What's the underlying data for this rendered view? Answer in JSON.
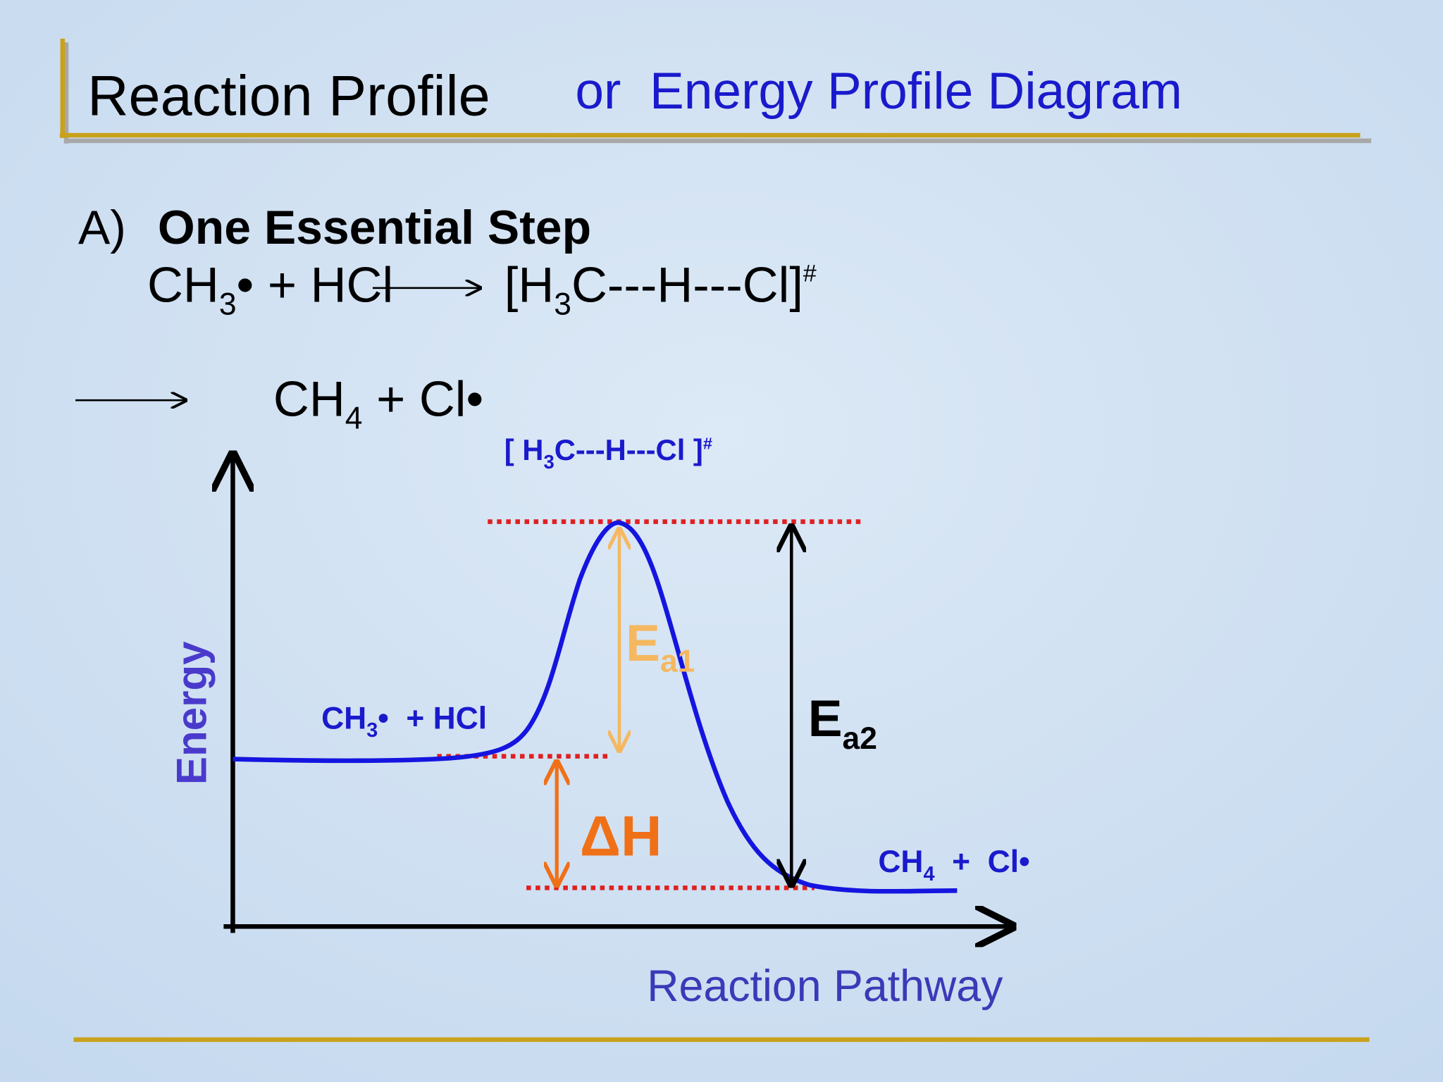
{
  "header": {
    "title": "Reaction Profile",
    "subtitle": "or  Energy Profile Diagram"
  },
  "section": {
    "label": "A)",
    "heading": "One Essential Step"
  },
  "equation": {
    "line_1_left": [
      {
        "t": "CH"
      },
      {
        "sub": "3"
      },
      {
        "t": "• + HCl"
      }
    ],
    "line_1_right": [
      {
        "t": "[H"
      },
      {
        "sub": "3"
      },
      {
        "t": "C---H---Cl]"
      },
      {
        "sup": "#"
      }
    ],
    "line_2": [
      {
        "t": "CH"
      },
      {
        "sub": "4"
      },
      {
        "t": " + Cl•"
      }
    ]
  },
  "diagram": {
    "transition_state": [
      {
        "t": "[ H"
      },
      {
        "sub": "3"
      },
      {
        "t": "C---H---Cl ]"
      },
      {
        "sup": "#"
      }
    ],
    "reactants": [
      {
        "t": "CH"
      },
      {
        "sub": "3"
      },
      {
        "t": "•  + HCl"
      }
    ],
    "products": [
      {
        "t": "CH"
      },
      {
        "sub": "4"
      },
      {
        "t": "  +  Cl•"
      }
    ],
    "ea1": [
      {
        "t": "E"
      },
      {
        "sub": "a1"
      }
    ],
    "ea2": [
      {
        "t": "E"
      },
      {
        "sub": "a2"
      }
    ],
    "delta_h": "ΔH",
    "y_axis_label": "Energy",
    "x_axis_label": "Reaction Pathway"
  }
}
